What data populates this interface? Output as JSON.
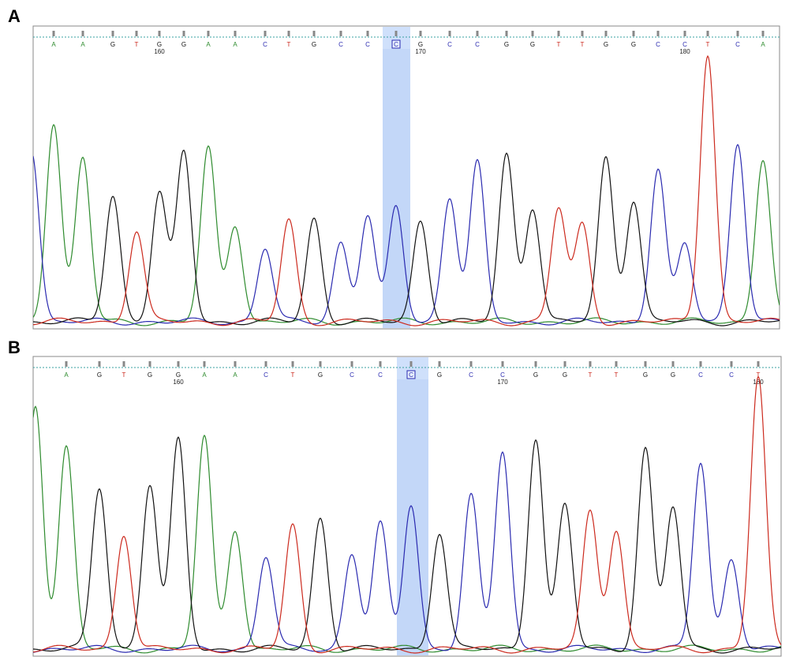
{
  "panels": [
    {
      "label": "A",
      "bases": [
        "A",
        "A",
        "G",
        "T",
        "G",
        "G",
        "A",
        "A",
        "C",
        "T",
        "G",
        "C",
        "C",
        "C",
        "G",
        "C",
        "C",
        "G",
        "G",
        "T",
        "T",
        "G",
        "G",
        "C",
        "C",
        "T",
        "C",
        "A"
      ],
      "position_labels": [
        "160",
        "170",
        "180"
      ]
    },
    {
      "label": "B",
      "bases": [
        "A",
        "G",
        "T",
        "G",
        "G",
        "A",
        "A",
        "C",
        "T",
        "G",
        "C",
        "C",
        "C",
        "G",
        "C",
        "C",
        "G",
        "G",
        "T",
        "T",
        "G",
        "G",
        "C",
        "C",
        "T"
      ],
      "position_labels": [
        "160",
        "170",
        "180"
      ]
    }
  ]
}
